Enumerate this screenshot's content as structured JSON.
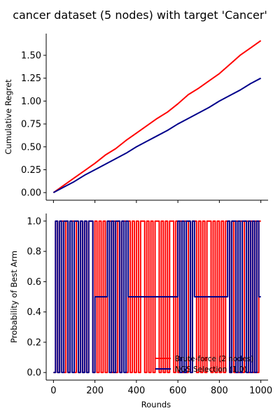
{
  "chart_data": [
    {
      "type": "line",
      "title": "cancer dataset (5 nodes) with target 'Cancer'",
      "xlabel": "",
      "ylabel": "Cumulative Regret",
      "xlim": [
        -35,
        1035
      ],
      "ylim": [
        -0.083,
        1.737
      ],
      "xticks": [
        0,
        200,
        400,
        600,
        800,
        1000
      ],
      "xtick_labels_visible": false,
      "yticks": [
        0.0,
        0.25,
        0.5,
        0.75,
        1.0,
        1.25,
        1.5
      ],
      "ytick_labels": [
        "0.00",
        "0.25",
        "0.50",
        "0.75",
        "1.00",
        "1.25",
        "1.50"
      ],
      "grid": false,
      "series": [
        {
          "color": "#ff0000",
          "x": [
            0,
            50,
            100,
            150,
            200,
            250,
            300,
            350,
            400,
            450,
            500,
            550,
            600,
            650,
            700,
            750,
            800,
            850,
            900,
            950,
            1000
          ],
          "y": [
            0.0,
            0.08,
            0.16,
            0.24,
            0.32,
            0.41,
            0.48,
            0.57,
            0.65,
            0.73,
            0.81,
            0.88,
            0.97,
            1.07,
            1.14,
            1.22,
            1.3,
            1.4,
            1.5,
            1.58,
            1.66
          ]
        },
        {
          "color": "#00008b",
          "x": [
            0,
            50,
            100,
            150,
            200,
            250,
            300,
            350,
            400,
            450,
            500,
            550,
            600,
            650,
            700,
            750,
            800,
            850,
            900,
            950,
            1000
          ],
          "y": [
            0.0,
            0.06,
            0.12,
            0.19,
            0.25,
            0.31,
            0.37,
            0.43,
            0.5,
            0.56,
            0.62,
            0.68,
            0.75,
            0.81,
            0.87,
            0.93,
            1.0,
            1.06,
            1.12,
            1.19,
            1.25
          ]
        }
      ]
    },
    {
      "type": "line",
      "title": "",
      "xlabel": "Rounds",
      "ylabel": "Probability of Best Arm",
      "xlim": [
        -35,
        1035
      ],
      "ylim": [
        -0.05,
        1.05
      ],
      "xticks": [
        0,
        200,
        400,
        600,
        800,
        1000
      ],
      "xtick_labels": [
        "0",
        "200",
        "400",
        "600",
        "800",
        "1000"
      ],
      "yticks": [
        0.0,
        0.2,
        0.4,
        0.6,
        0.8,
        1.0
      ],
      "ytick_labels": [
        "0.0",
        "0.2",
        "0.4",
        "0.6",
        "0.8",
        "1.0"
      ],
      "grid": false,
      "legend_position": "lower-right",
      "series": [
        {
          "name": "Brute-force (2 nodes)",
          "color": "#ff0000",
          "x": [
            0,
            10,
            20,
            30,
            40,
            50,
            60,
            70,
            80,
            90,
            100,
            110,
            120,
            130,
            140,
            150,
            160,
            170,
            180,
            190,
            200,
            210,
            220,
            230,
            240,
            250,
            260,
            270,
            280,
            290,
            300,
            310,
            320,
            330,
            340,
            350,
            360,
            370,
            380,
            390,
            400,
            410,
            420,
            430,
            440,
            450,
            460,
            470,
            480,
            490,
            500,
            510,
            520,
            530,
            540,
            550,
            560,
            570,
            580,
            590,
            600,
            610,
            620,
            630,
            640,
            650,
            660,
            670,
            680,
            690,
            700,
            710,
            720,
            730,
            740,
            750,
            760,
            770,
            780,
            790,
            800,
            810,
            820,
            830,
            840,
            850,
            860,
            870,
            880,
            890,
            900,
            910,
            920,
            930,
            940,
            950,
            960,
            970,
            980,
            990,
            1000
          ],
          "y": [
            0,
            1,
            0,
            1,
            1,
            0,
            1,
            0,
            1,
            1,
            0,
            1,
            0,
            1,
            0,
            1,
            0,
            1,
            1,
            0,
            1,
            0,
            1,
            0,
            1,
            0,
            1,
            1,
            0,
            1,
            0,
            1,
            0,
            1,
            1,
            0,
            1,
            0,
            1,
            0,
            1,
            0,
            1,
            1,
            0,
            1,
            0,
            1,
            0,
            1,
            1,
            0,
            1,
            0,
            1,
            0,
            1,
            1,
            0,
            1,
            0,
            1,
            0,
            1,
            0,
            1,
            0,
            1,
            1,
            0,
            1,
            0,
            1,
            0,
            1,
            1,
            0,
            1,
            0,
            1,
            0,
            1,
            0,
            1,
            1,
            0,
            1,
            0,
            1,
            0,
            1,
            0,
            1,
            1,
            0,
            1,
            0,
            1,
            0,
            1,
            1
          ]
        },
        {
          "name": "NGS Selection (1.0)",
          "color": "#00008b",
          "x": [
            0,
            10,
            20,
            30,
            40,
            50,
            60,
            70,
            80,
            90,
            100,
            110,
            120,
            130,
            140,
            150,
            160,
            170,
            180,
            190,
            200,
            210,
            220,
            230,
            240,
            250,
            260,
            270,
            280,
            290,
            300,
            310,
            320,
            330,
            340,
            350,
            360,
            370,
            380,
            390,
            400,
            410,
            420,
            430,
            440,
            450,
            460,
            470,
            480,
            490,
            500,
            510,
            520,
            530,
            540,
            550,
            560,
            570,
            580,
            590,
            600,
            610,
            620,
            630,
            640,
            650,
            660,
            670,
            680,
            690,
            700,
            710,
            720,
            730,
            740,
            750,
            760,
            770,
            780,
            790,
            800,
            810,
            820,
            830,
            840,
            850,
            860,
            870,
            880,
            890,
            900,
            910,
            920,
            930,
            940,
            950,
            960,
            970,
            980,
            990,
            1000
          ],
          "y": [
            0,
            1,
            0,
            1,
            0,
            1,
            1,
            0,
            1,
            0,
            1,
            1,
            0,
            1,
            0,
            1,
            0,
            1,
            1,
            0,
            0.5,
            0.5,
            0.5,
            0.5,
            0.5,
            0.5,
            1,
            0,
            1,
            0,
            1,
            1,
            0,
            1,
            0,
            1,
            0.5,
            0.5,
            0.5,
            0.5,
            0.5,
            0.5,
            0.5,
            0.5,
            0.5,
            0.5,
            0.5,
            0.5,
            0.5,
            0.5,
            0.5,
            0.5,
            0.5,
            0.5,
            0.5,
            0.5,
            0.5,
            0.5,
            0.5,
            0.5,
            1,
            0,
            1,
            0,
            1,
            1,
            0,
            1,
            0.5,
            0.5,
            0.5,
            0.5,
            0.5,
            0.5,
            0.5,
            0.5,
            0.5,
            0.5,
            0.5,
            0.5,
            0.5,
            0.5,
            0.5,
            0.5,
            1,
            0,
            1,
            1,
            0,
            1,
            0,
            1,
            1,
            0,
            1,
            0,
            1,
            0,
            1,
            0.5,
            0.5
          ]
        }
      ]
    }
  ]
}
